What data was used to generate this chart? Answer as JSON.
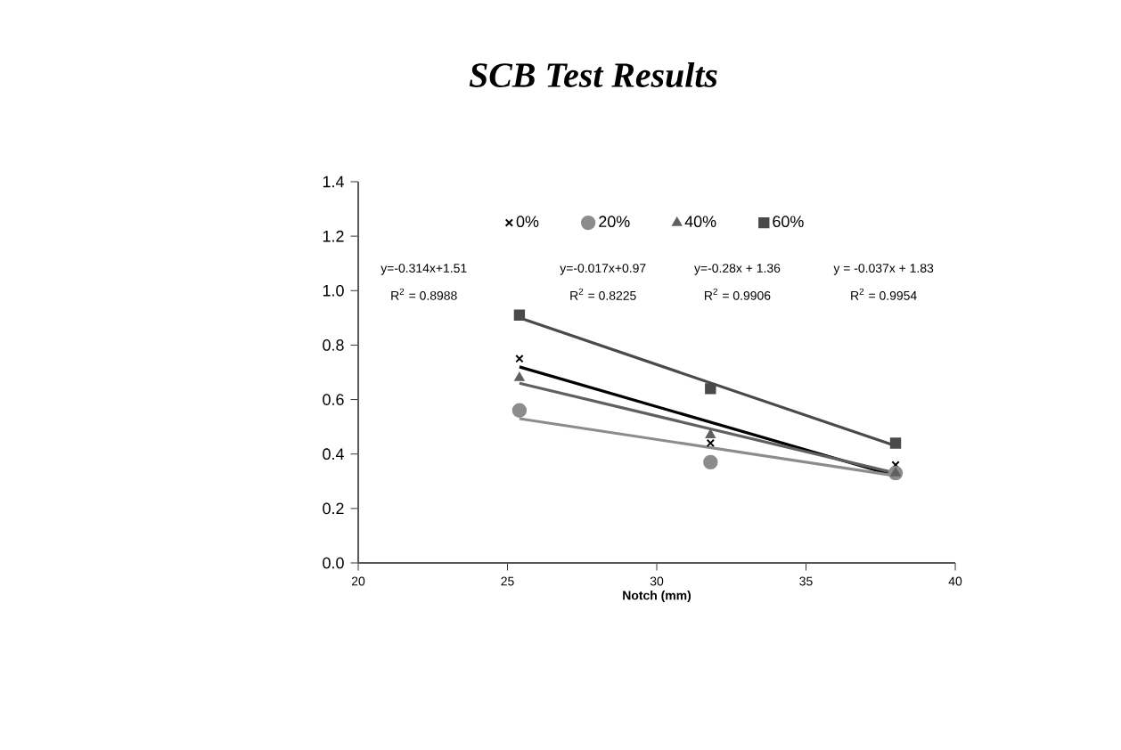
{
  "chart_data": {
    "type": "scatter",
    "title": "SCB Test Results",
    "xlabel": "Notch (mm)",
    "xlim": [
      20,
      40
    ],
    "xticks": [
      20,
      25,
      30,
      35,
      40
    ],
    "ylim": [
      0,
      1.4
    ],
    "yticks": [
      {
        "value": 0,
        "label": "0.0"
      },
      {
        "value": 0.2,
        "label": "0.2"
      },
      {
        "value": 0.4,
        "label": "0.4"
      },
      {
        "value": 0.6,
        "label": "0.6"
      },
      {
        "value": 0.8,
        "label": "0.8"
      },
      {
        "value": 1.0,
        "label": "1.0"
      },
      {
        "value": 1.2,
        "label": "1.2"
      },
      {
        "value": 1.4,
        "label": "1.4"
      }
    ],
    "legend": "top",
    "grid": false,
    "series": [
      {
        "name": "0%",
        "marker": "cross",
        "color": "#000000",
        "x": [
          25.4,
          31.8,
          38.0
        ],
        "values": [
          0.75,
          0.44,
          0.36
        ]
      },
      {
        "name": "20%",
        "marker": "circle",
        "color": "#8c8c8c",
        "x": [
          25.4,
          31.8,
          38.0
        ],
        "values": [
          0.56,
          0.37,
          0.33
        ]
      },
      {
        "name": "40%",
        "marker": "triangle",
        "color": "#606060",
        "x": [
          25.4,
          31.8,
          38.0
        ],
        "values": [
          0.68,
          0.47,
          0.33
        ]
      },
      {
        "name": "60%",
        "marker": "square",
        "color": "#4a4a4a",
        "x": [
          25.4,
          31.8,
          38.0
        ],
        "values": [
          0.91,
          0.64,
          0.44
        ]
      },
      {
        "type": "line",
        "color": "#000000",
        "x": [
          25.4,
          38.0
        ],
        "values": [
          0.72,
          0.32
        ]
      },
      {
        "type": "line",
        "color": "#8c8c8c",
        "x": [
          25.4,
          38.0
        ],
        "values": [
          0.53,
          0.32
        ]
      },
      {
        "type": "line",
        "color": "#606060",
        "x": [
          25.4,
          38.0
        ],
        "values": [
          0.66,
          0.33
        ]
      },
      {
        "type": "line",
        "color": "#4a4a4a",
        "x": [
          25.4,
          38.0
        ],
        "values": [
          0.9,
          0.43
        ]
      }
    ],
    "annotations": [
      "y=-0.314x+1.51",
      "R$^{2}$ = 0.8988",
      "y=-0.017x+0.97",
      "R$^{2}$ = 0.8225",
      "y=-0.28x + 1.36",
      "R$^{2}$ = 0.9906",
      "y = -0.037x + 1.83",
      "R$^{2}$ = 0.9954"
    ]
  }
}
